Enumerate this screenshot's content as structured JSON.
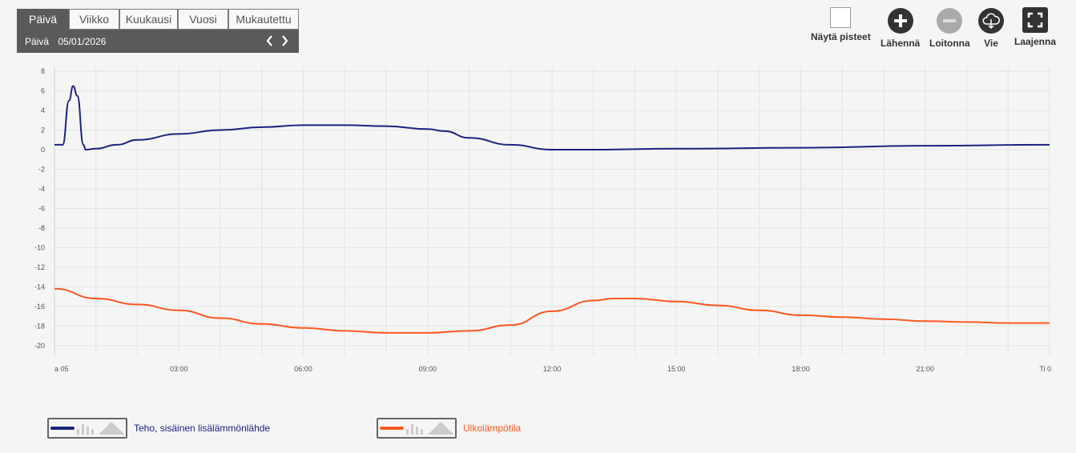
{
  "period_selector": {
    "tabs": [
      {
        "label": "Päivä",
        "active": true
      },
      {
        "label": "Viikko",
        "active": false
      },
      {
        "label": "Kuukausi",
        "active": false
      },
      {
        "label": "Vuosi",
        "active": false
      },
      {
        "label": "Mukautettu",
        "active": false
      }
    ],
    "date_label": "Päivä",
    "date_value": "05/01/2026"
  },
  "toolbar": {
    "show_points": "Näytä pisteet",
    "zoom_in": "Lähennä",
    "zoom_out": "Loitonna",
    "export": "Vie",
    "expand": "Laajenna"
  },
  "chart_data": {
    "type": "line",
    "title": "",
    "xlabel": "",
    "ylabel": "",
    "ylim": [
      -21,
      8.5
    ],
    "y_ticks": [
      8,
      6,
      4,
      2,
      0,
      -2,
      -4,
      -6,
      -8,
      -10,
      -12,
      -14,
      -16,
      -18,
      -20
    ],
    "x_unit": "hours",
    "xlim": [
      0,
      24
    ],
    "x_ticks": [
      {
        "x": 0,
        "label": "a 05"
      },
      {
        "x": 3,
        "label": "03:00"
      },
      {
        "x": 6,
        "label": "06:00"
      },
      {
        "x": 9,
        "label": "09:00"
      },
      {
        "x": 12,
        "label": "12:00"
      },
      {
        "x": 15,
        "label": "15:00"
      },
      {
        "x": 18,
        "label": "18:00"
      },
      {
        "x": 21,
        "label": "21:00"
      },
      {
        "x": 24,
        "label": "Ti 0"
      }
    ],
    "grid": true,
    "legend_position": "bottom-left",
    "series": [
      {
        "name": "Teho, sisäinen lisälämmönlähde",
        "color": "#1a237e",
        "x": [
          0,
          0.2,
          0.35,
          0.45,
          0.55,
          0.7,
          0.75,
          1,
          1.5,
          2,
          3,
          4,
          5,
          6,
          7,
          8,
          9,
          9.4,
          10,
          11,
          12,
          13,
          15,
          18,
          21,
          24
        ],
        "y": [
          0.5,
          0.5,
          5,
          6.5,
          5.5,
          0.5,
          0,
          0.1,
          0.5,
          1,
          1.6,
          2,
          2.3,
          2.5,
          2.5,
          2.4,
          2.1,
          1.9,
          1.2,
          0.5,
          0,
          0,
          0.1,
          0.2,
          0.4,
          0.5
        ]
      },
      {
        "name": "Ulkolämpötila",
        "color": "#ff5722",
        "x": [
          0,
          1,
          2,
          3,
          4,
          5,
          6,
          7,
          8,
          9,
          10,
          11,
          12,
          13,
          13.5,
          14,
          15,
          16,
          17,
          18,
          19,
          20,
          21,
          22,
          23,
          24
        ],
        "y": [
          -14.2,
          -15.2,
          -15.8,
          -16.4,
          -17.2,
          -17.8,
          -18.2,
          -18.5,
          -18.7,
          -18.7,
          -18.5,
          -17.9,
          -16.5,
          -15.4,
          -15.2,
          -15.2,
          -15.5,
          -15.9,
          -16.4,
          -16.9,
          -17.1,
          -17.3,
          -17.5,
          -17.6,
          -17.7,
          -17.7
        ]
      }
    ]
  }
}
